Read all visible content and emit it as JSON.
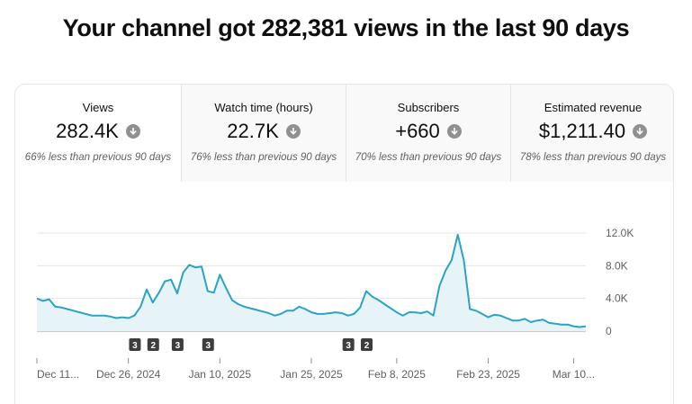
{
  "headline": "Your channel got 282,381 views in the last 90 days",
  "tabs": [
    {
      "label": "Views",
      "value": "282.4K",
      "comparison": "66% less than previous 90 days",
      "trend_icon": "arrow-down-circle-icon",
      "active": true
    },
    {
      "label": "Watch time (hours)",
      "value": "22.7K",
      "comparison": "76% less than previous 90 days",
      "trend_icon": "arrow-down-circle-icon",
      "active": false
    },
    {
      "label": "Subscribers",
      "value": "+660",
      "comparison": "70% less than previous 90 days",
      "trend_icon": "arrow-down-circle-icon",
      "active": false
    },
    {
      "label": "Estimated revenue",
      "value": "$1,211.40",
      "comparison": "78% less than previous 90 days",
      "trend_icon": "arrow-down-circle-icon",
      "active": false
    }
  ],
  "chart_data": {
    "type": "area",
    "ylim": [
      0,
      12000
    ],
    "yticks": [
      0,
      4000,
      8000,
      12000
    ],
    "ytick_labels": [
      "0",
      "4.0K",
      "8.0K",
      "12.0K"
    ],
    "xtick_labels": [
      "Dec 11...",
      "Dec 26, 2024",
      "Jan 10, 2025",
      "Jan 25, 2025",
      "Feb 8, 2025",
      "Feb 23, 2025",
      "Mar 10..."
    ],
    "xtick_days": [
      0,
      15,
      30,
      45,
      59,
      74,
      88
    ],
    "grid": true,
    "line_color": "#2ba3c4",
    "fill_color": "#e6f4f8",
    "series": [
      {
        "values": [
          4000,
          3700,
          3900,
          3000,
          2900,
          2700,
          2500,
          2300,
          2100,
          1900,
          1900,
          1900,
          1800,
          1600,
          1700,
          1600,
          1900,
          3000,
          5100,
          3500,
          4700,
          6100,
          6300,
          4600,
          7200,
          8100,
          7800,
          7900,
          4900,
          4700,
          6900,
          5300,
          3800,
          3300,
          3000,
          2800,
          2600,
          2400,
          2200,
          1900,
          2100,
          2500,
          2500,
          3000,
          2700,
          2300,
          2100,
          2100,
          2200,
          2300,
          2200,
          1900,
          2100,
          2900,
          4900,
          4200,
          3800,
          3300,
          2800,
          2300,
          1900,
          2300,
          2300,
          2200,
          2400,
          1900,
          5500,
          7400,
          8700,
          11800,
          8700,
          2700,
          2500,
          2100,
          1700,
          2000,
          1900,
          1600,
          1300,
          1300,
          1500,
          1100,
          1300,
          1400,
          1000,
          900,
          800,
          800,
          600,
          500,
          600
        ]
      }
    ],
    "annotations": [
      {
        "day": 16,
        "label": "3"
      },
      {
        "day": 19,
        "label": "2"
      },
      {
        "day": 23,
        "label": "3"
      },
      {
        "day": 28,
        "label": "3"
      },
      {
        "day": 51,
        "label": "3"
      },
      {
        "day": 54,
        "label": "2"
      }
    ]
  }
}
